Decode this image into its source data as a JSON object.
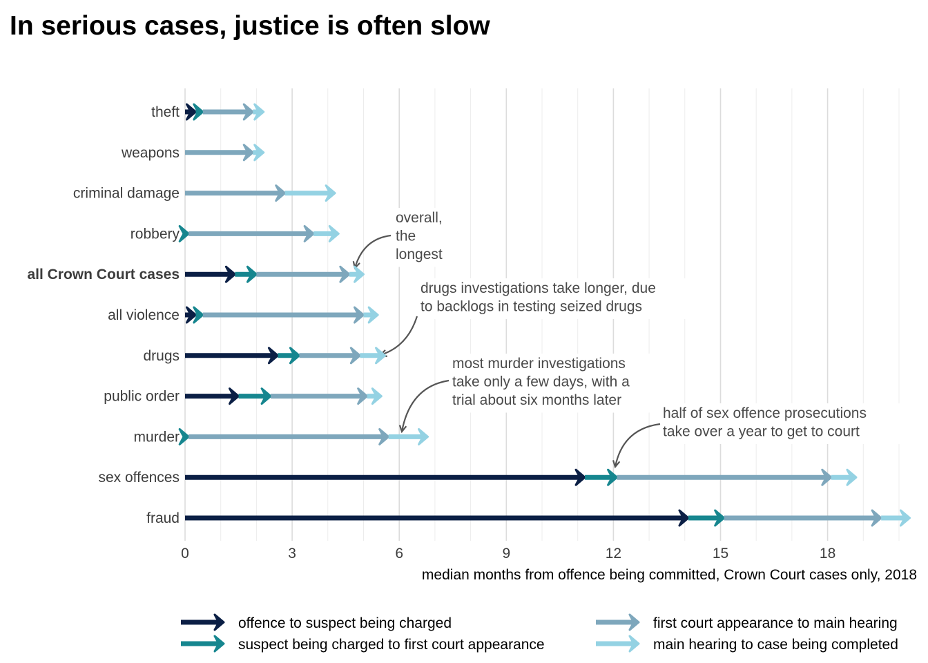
{
  "chart_data": {
    "type": "bar",
    "subtype": "stacked-arrow-segments",
    "title": "In serious cases, justice is often slow",
    "xlabel": "median months from offence being committed, Crown Court cases only, 2018",
    "xlim": [
      0,
      20
    ],
    "xticks": [
      0,
      3,
      6,
      9,
      12,
      15,
      18
    ],
    "grid": "vertical",
    "legend_position": "bottom",
    "categories": [
      "theft",
      "weapons",
      "criminal damage",
      "robbery",
      "all Crown Court cases",
      "all violence",
      "drugs",
      "public order",
      "murder",
      "sex offences",
      "fraud"
    ],
    "highlight_category": "all Crown Court cases",
    "series": [
      {
        "name": "offence to suspect being charged",
        "color": "#0b1f45",
        "values": [
          0.3,
          0.0,
          0.0,
          0.0,
          1.4,
          0.3,
          2.6,
          1.5,
          0.0,
          11.2,
          14.1
        ]
      },
      {
        "name": "suspect being charged to first court appearance",
        "color": "#16868f",
        "values": [
          0.2,
          0.0,
          0.0,
          0.1,
          0.6,
          0.2,
          0.6,
          0.9,
          0.1,
          0.9,
          1.0
        ]
      },
      {
        "name": "first court appearance to main hearing",
        "color": "#7ea7bc",
        "values": [
          1.4,
          1.9,
          2.8,
          3.5,
          2.6,
          4.5,
          1.7,
          2.7,
          5.6,
          6.0,
          4.4
        ]
      },
      {
        "name": "main hearing to case being completed",
        "color": "#94d2e3",
        "values": [
          0.3,
          0.3,
          1.4,
          0.7,
          0.4,
          0.4,
          0.7,
          0.4,
          1.1,
          0.7,
          0.8
        ]
      }
    ],
    "annotations": [
      {
        "category": "all Crown Court cases",
        "lines": [
          "overall,",
          "the",
          "longest"
        ]
      },
      {
        "category": "drugs",
        "lines": [
          "drugs investigations take longer, due",
          "to backlogs in testing seized drugs"
        ]
      },
      {
        "category": "murder",
        "lines": [
          "most murder investigations",
          "take only a few days, with a",
          "trial about six months later"
        ]
      },
      {
        "category": "sex offences",
        "lines": [
          "half of sex offence prosecutions",
          "take over a year to get to court"
        ]
      }
    ]
  }
}
